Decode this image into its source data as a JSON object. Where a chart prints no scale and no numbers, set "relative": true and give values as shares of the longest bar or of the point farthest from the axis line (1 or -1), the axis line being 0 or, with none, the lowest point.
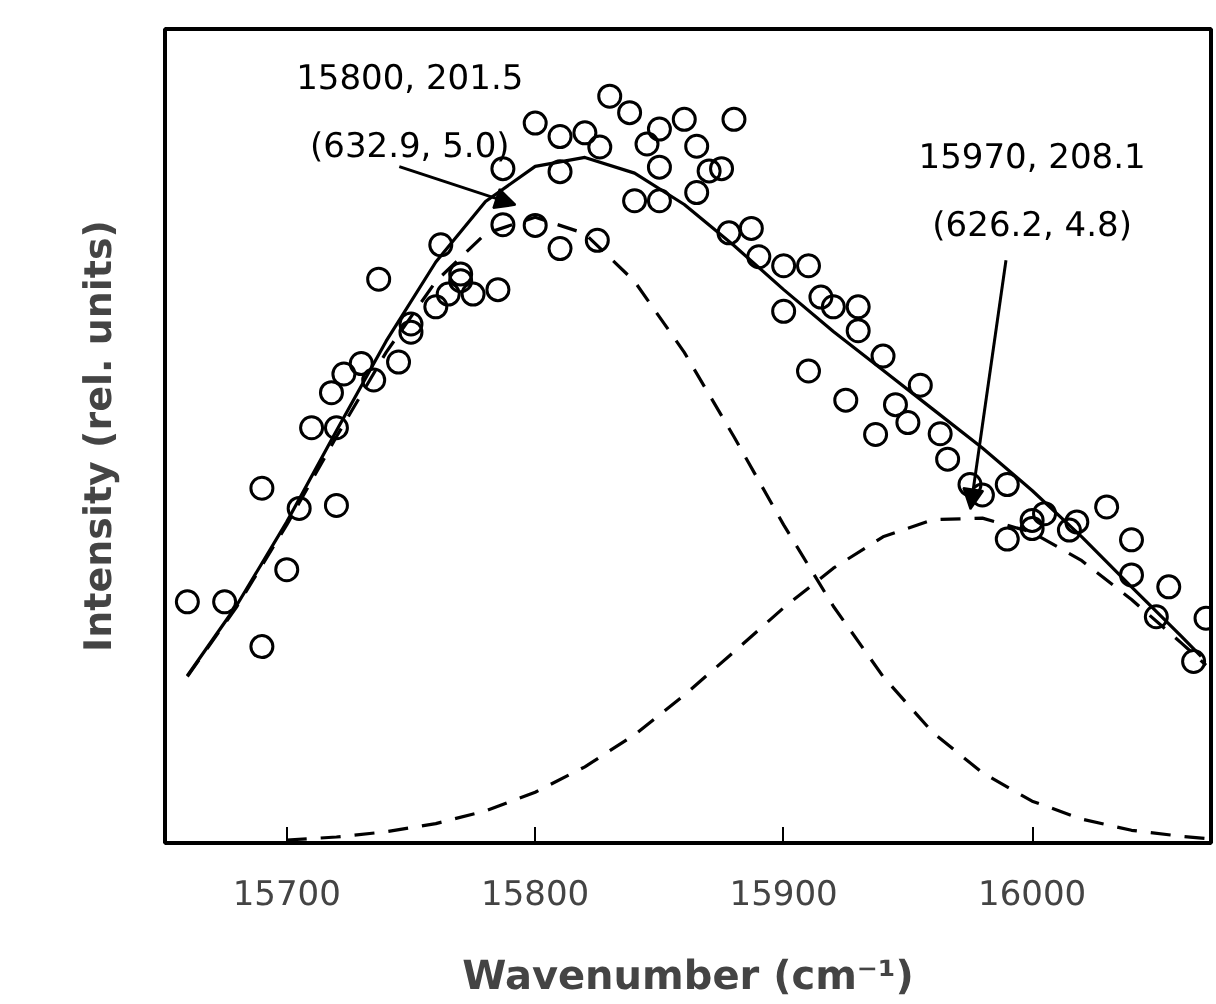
{
  "chart_data": {
    "type": "scatter",
    "relative": true,
    "xlabel": "Wavenumber (cm⁻¹)",
    "ylabel": "Intensity (rel. units)",
    "xlim": [
      15651,
      16072
    ],
    "xticks": [
      15700,
      15800,
      15900,
      16000
    ],
    "grid": false,
    "series": [
      {
        "marker": "circle",
        "color": "#000000",
        "x": [
          15660,
          15675,
          15690,
          15690,
          15700,
          15705,
          15710,
          15718,
          15720,
          15720,
          15723,
          15730,
          15735,
          15737,
          15745,
          15750,
          15750,
          15760,
          15762,
          15765,
          15770,
          15770,
          15775,
          15785,
          15787,
          15787,
          15800,
          15800,
          15810,
          15810,
          15810,
          15820,
          15825,
          15826,
          15830,
          15838,
          15840,
          15845,
          15850,
          15850,
          15850,
          15860,
          15865,
          15865,
          15870,
          15875,
          15878,
          15880,
          15887,
          15890,
          15900,
          15900,
          15910,
          15910,
          15915,
          15920,
          15925,
          15930,
          15930,
          15937,
          15940,
          15945,
          15950,
          15955,
          15963,
          15966,
          15975,
          15980,
          15990,
          15990,
          16000,
          16000,
          16005,
          16015,
          16018,
          16030,
          16040,
          16040,
          16050,
          16055,
          16065,
          16070
        ],
        "values": [
          0.323,
          0.323,
          0.263,
          0.475,
          0.366,
          0.448,
          0.556,
          0.603,
          0.556,
          0.452,
          0.628,
          0.642,
          0.62,
          0.755,
          0.644,
          0.695,
          0.684,
          0.718,
          0.801,
          0.735,
          0.762,
          0.753,
          0.735,
          0.741,
          0.903,
          0.828,
          0.964,
          0.827,
          0.946,
          0.899,
          0.796,
          0.951,
          0.807,
          0.932,
          1.0,
          0.978,
          0.86,
          0.936,
          0.956,
          0.905,
          0.86,
          0.969,
          0.933,
          0.871,
          0.9,
          0.903,
          0.817,
          0.969,
          0.823,
          0.785,
          0.773,
          0.712,
          0.773,
          0.632,
          0.731,
          0.718,
          0.593,
          0.718,
          0.686,
          0.547,
          0.652,
          0.587,
          0.563,
          0.613,
          0.548,
          0.514,
          0.48,
          0.466,
          0.48,
          0.407,
          0.432,
          0.421,
          0.441,
          0.419,
          0.43,
          0.45,
          0.406,
          0.359,
          0.303,
          0.343,
          0.243,
          0.301
        ]
      },
      {
        "type": "line",
        "line_style": "solid",
        "color": "#000000",
        "x": [
          15660,
          15680,
          15700,
          15720,
          15740,
          15760,
          15780,
          15800,
          15820,
          15840,
          15860,
          15880,
          15900,
          15920,
          15940,
          15960,
          15980,
          16000,
          16020,
          16040,
          16060,
          16068
        ],
        "values": [
          0.224,
          0.319,
          0.43,
          0.552,
          0.672,
          0.778,
          0.859,
          0.906,
          0.918,
          0.897,
          0.855,
          0.8,
          0.741,
          0.685,
          0.633,
          0.581,
          0.529,
          0.472,
          0.41,
          0.343,
          0.277,
          0.25
        ]
      },
      {
        "type": "line",
        "line_style": "dashed",
        "color": "#000000",
        "x": [
          15660,
          15680,
          15700,
          15720,
          15740,
          15760,
          15780,
          15800,
          15820,
          15840,
          15860,
          15880,
          15900,
          15920,
          15940,
          15960,
          15980,
          16000,
          16020,
          16040,
          16060,
          16070
        ],
        "values": [
          0.223,
          0.317,
          0.426,
          0.544,
          0.657,
          0.752,
          0.816,
          0.838,
          0.816,
          0.752,
          0.657,
          0.544,
          0.426,
          0.317,
          0.223,
          0.148,
          0.094,
          0.056,
          0.032,
          0.017,
          0.009,
          0.006
        ]
      },
      {
        "type": "line",
        "line_style": "dashed",
        "color": "#000000",
        "x": [
          15700,
          15720,
          15740,
          15760,
          15780,
          15800,
          15820,
          15840,
          15860,
          15880,
          15900,
          15920,
          15940,
          15960,
          15980,
          16000,
          16020,
          16040,
          16060,
          16070
        ],
        "values": [
          0.004,
          0.008,
          0.015,
          0.026,
          0.043,
          0.068,
          0.102,
          0.145,
          0.198,
          0.256,
          0.315,
          0.368,
          0.41,
          0.433,
          0.435,
          0.416,
          0.378,
          0.326,
          0.268,
          0.238
        ]
      }
    ],
    "annotations": [
      "15800, 201.5\n(632.9, 5.0)",
      "15970, 208.1\n(626.2, 4.8)"
    ]
  }
}
